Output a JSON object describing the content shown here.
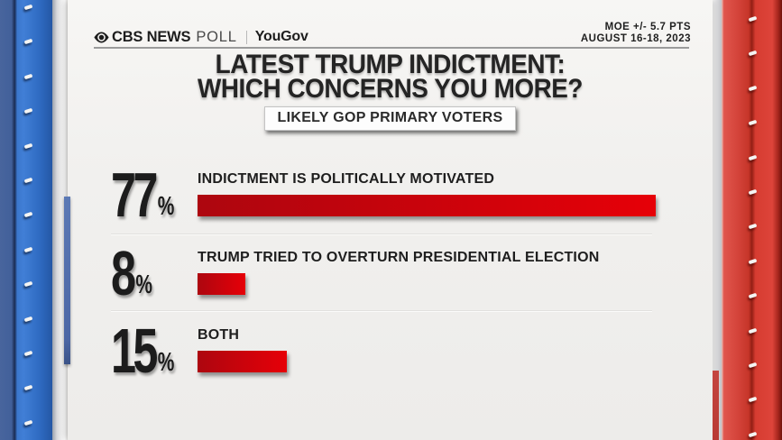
{
  "header": {
    "brand_cbs": "CBS NEWS",
    "brand_poll": "POLL",
    "brand_partner": "YouGov",
    "moe_line1": "MOE +/- 5.7 PTS",
    "moe_line2": "AUGUST 16-18, 2023"
  },
  "title": {
    "line1": "LATEST TRUMP INDICTMENT:",
    "line2": "WHICH CONCERNS YOU MORE?",
    "badge": "LIKELY GOP PRIMARY VOTERS"
  },
  "chart_data": {
    "type": "bar",
    "orientation": "horizontal",
    "title": "LATEST TRUMP INDICTMENT: WHICH CONCERNS YOU MORE?",
    "subtitle": "LIKELY GOP PRIMARY VOTERS",
    "categories": [
      "INDICTMENT IS POLITICALLY MOTIVATED",
      "TRUMP TRIED TO OVERTURN PRESIDENTIAL ELECTION",
      "BOTH"
    ],
    "values": [
      77,
      8,
      15
    ],
    "unit": "%",
    "xlim": [
      0,
      100
    ],
    "moe": "MOE +/- 5.7 PTS",
    "field_dates": "AUGUST 16-18, 2023",
    "source": "CBS NEWS POLL | YouGov"
  },
  "colors": {
    "bar_red_dark": "#ad060f",
    "bar_red_bright": "#e60008",
    "pillar_blue": "#2f6bc2",
    "pillar_red": "#d5453c"
  }
}
